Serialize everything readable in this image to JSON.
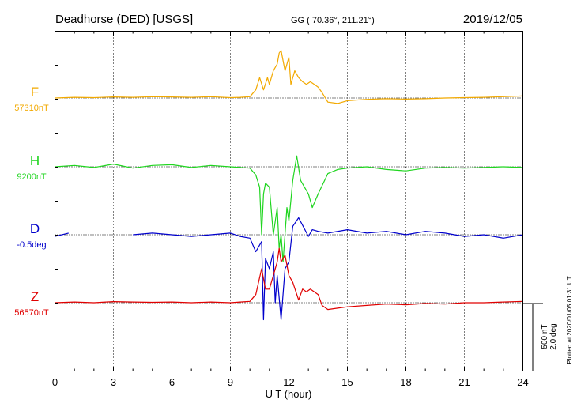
{
  "header": {
    "station": "Deadhorse (DED)  [USGS]",
    "coords": "GG ( 70.36°, 211.21°)",
    "date": "2019/12/05"
  },
  "side_note": "Plotted at 2020/01/05 01:31 UT",
  "scale_label_nt": "500 nT",
  "scale_label_deg": "2.0 deg",
  "colors": {
    "F": "#f2a900",
    "H": "#1fd51f",
    "D": "#0000cc",
    "Z": "#e00000"
  },
  "chart_data": {
    "type": "line",
    "title": "Deadhorse (DED)  [USGS]",
    "xlabel": "U T (hour)",
    "xlim": [
      0,
      24
    ],
    "x_ticks": [
      0,
      3,
      6,
      9,
      12,
      15,
      18,
      21,
      24
    ],
    "x_tick_labels": [
      "0",
      "3",
      "6",
      "9",
      "12",
      "15",
      "18",
      "21",
      "24"
    ],
    "y_scale": {
      "per_division_nT": 500,
      "per_division_deg": 2.0
    },
    "series": [
      {
        "name": "F",
        "baseline_label": "57310nT",
        "x": [
          0,
          1,
          2,
          3,
          4,
          5,
          6,
          7,
          8,
          9,
          9.5,
          10,
          10.3,
          10.5,
          10.7,
          10.9,
          11.0,
          11.2,
          11.4,
          11.5,
          11.6,
          11.8,
          12.0,
          12.1,
          12.3,
          12.5,
          12.7,
          12.9,
          13.1,
          13.3,
          13.5,
          13.7,
          14.0,
          14.5,
          15,
          16,
          17,
          18,
          19,
          20,
          21,
          22,
          23,
          24
        ],
        "values": [
          0,
          5,
          3,
          8,
          5,
          10,
          8,
          5,
          10,
          3,
          5,
          10,
          60,
          150,
          60,
          150,
          100,
          200,
          250,
          330,
          350,
          200,
          300,
          100,
          200,
          150,
          120,
          100,
          120,
          100,
          80,
          40,
          -30,
          -40,
          -20,
          -10,
          -5,
          -8,
          -5,
          0,
          3,
          5,
          10,
          15
        ]
      },
      {
        "name": "H",
        "baseline_label": "9200nT",
        "x": [
          0,
          1,
          2,
          3,
          4,
          5,
          6,
          7,
          8,
          9,
          9.5,
          10,
          10.3,
          10.5,
          10.6,
          10.7,
          10.8,
          11.0,
          11.2,
          11.4,
          11.5,
          11.6,
          11.7,
          11.9,
          12.0,
          12.2,
          12.4,
          12.6,
          12.8,
          13.0,
          13.2,
          13.5,
          14.0,
          14.5,
          15,
          16,
          17,
          18,
          19,
          20,
          21,
          22,
          23,
          24
        ],
        "values": [
          0,
          10,
          -5,
          20,
          -10,
          10,
          15,
          -5,
          10,
          0,
          -5,
          -10,
          -60,
          -150,
          -500,
          -200,
          -120,
          -150,
          -500,
          -300,
          -600,
          -500,
          -700,
          -300,
          -400,
          -100,
          80,
          -100,
          -150,
          -200,
          -300,
          -200,
          -50,
          -20,
          -10,
          0,
          -20,
          -30,
          -10,
          -5,
          -10,
          -5,
          0,
          -5
        ]
      },
      {
        "name": "D",
        "baseline_label": "-0.5deg",
        "x": [
          0,
          0.7,
          1,
          2,
          3,
          3.5,
          4,
          5,
          6,
          7,
          8,
          9,
          9.5,
          10,
          10.3,
          10.6,
          10.7,
          10.8,
          11.0,
          11.2,
          11.3,
          11.4,
          11.6,
          11.8,
          12.0,
          12.2,
          12.5,
          13.0,
          13.2,
          13.5,
          14,
          15,
          16,
          17,
          18,
          19,
          20,
          21,
          22,
          23,
          24
        ],
        "values": [
          -0.05,
          0.05,
          null,
          null,
          null,
          null,
          0,
          0.05,
          0,
          -0.05,
          0,
          0.05,
          -0.05,
          -0.1,
          -0.5,
          -0.2,
          -2.5,
          -0.7,
          -1.0,
          -0.5,
          -2.0,
          -1.2,
          -2.5,
          -1.0,
          -0.8,
          0.25,
          0.5,
          -0.05,
          0.15,
          0.1,
          0.05,
          0.15,
          0.05,
          0.1,
          0.0,
          0.1,
          0.05,
          -0.05,
          0.0,
          -0.1,
          0.0
        ]
      },
      {
        "name": "Z",
        "baseline_label": "56570nT",
        "x": [
          0,
          1,
          2,
          3,
          4,
          5,
          6,
          7,
          8,
          9,
          9.5,
          10,
          10.3,
          10.6,
          10.8,
          11.0,
          11.2,
          11.4,
          11.5,
          11.6,
          11.8,
          12.0,
          12.2,
          12.5,
          12.7,
          12.9,
          13.1,
          13.3,
          13.5,
          13.7,
          14.0,
          14.5,
          15,
          16,
          17,
          18,
          19,
          20,
          21,
          22,
          23,
          24
        ],
        "values": [
          0,
          5,
          0,
          8,
          5,
          3,
          5,
          0,
          5,
          0,
          5,
          10,
          60,
          250,
          100,
          100,
          200,
          300,
          400,
          300,
          350,
          200,
          150,
          20,
          100,
          80,
          100,
          80,
          60,
          -20,
          -50,
          -40,
          -30,
          -20,
          -10,
          -15,
          -5,
          -10,
          0,
          0,
          5,
          10
        ]
      }
    ]
  }
}
